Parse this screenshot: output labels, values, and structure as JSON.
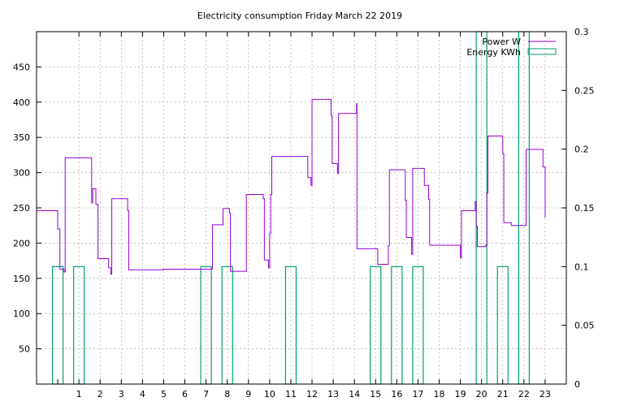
{
  "chart_data": {
    "type": "line+bar",
    "title": "Electricity consumption Friday March 22 2019",
    "colors": {
      "power": "#9400d3",
      "energy": "#009e73",
      "grid": "#a0a0a0",
      "axis": "#000000"
    },
    "grid": true,
    "legend_position": "top-right",
    "x_axis": {
      "range": [
        -1,
        24
      ],
      "ticks": [
        1,
        2,
        3,
        4,
        5,
        6,
        7,
        8,
        9,
        10,
        11,
        12,
        13,
        14,
        15,
        16,
        17,
        18,
        19,
        20,
        21,
        22,
        23
      ],
      "tick_labels": [
        "1",
        "2",
        "3",
        "4",
        "5",
        "6",
        "7",
        "8",
        "9",
        "10",
        "11",
        "12",
        "13",
        "14",
        "15",
        "16",
        "17",
        "18",
        "19",
        "20",
        "21",
        "22",
        "23"
      ]
    },
    "y_axis_left": {
      "range": [
        0,
        500
      ],
      "ticks": [
        50,
        100,
        150,
        200,
        250,
        300,
        350,
        400,
        450
      ],
      "tick_labels": [
        "50",
        "100",
        "150",
        "200",
        "250",
        "300",
        "350",
        "400",
        "450"
      ]
    },
    "y_axis_right": {
      "range": [
        0,
        0.3
      ],
      "ticks": [
        0,
        0.05,
        0.1,
        0.15,
        0.2,
        0.25,
        0.3
      ],
      "tick_labels": [
        "0",
        "0.05",
        "0.1",
        "0.15",
        "0.2",
        "0.25",
        "0.3"
      ]
    },
    "series": [
      {
        "name": "Power W",
        "kind": "step",
        "axis": "left",
        "points": [
          [
            -1,
            246
          ],
          [
            0,
            246
          ],
          [
            0,
            220
          ],
          [
            0.1,
            220
          ],
          [
            0.1,
            163
          ],
          [
            0.3,
            163
          ],
          [
            0.3,
            159
          ],
          [
            0.35,
            159
          ],
          [
            0.35,
            321
          ],
          [
            1.6,
            321
          ],
          [
            1.6,
            257
          ],
          [
            1.65,
            257
          ],
          [
            1.65,
            277
          ],
          [
            1.8,
            277
          ],
          [
            1.8,
            255
          ],
          [
            1.9,
            255
          ],
          [
            1.9,
            178
          ],
          [
            2.4,
            178
          ],
          [
            2.4,
            165
          ],
          [
            2.5,
            165
          ],
          [
            2.5,
            156
          ],
          [
            2.55,
            156
          ],
          [
            2.55,
            263
          ],
          [
            3.3,
            263
          ],
          [
            3.3,
            246
          ],
          [
            3.35,
            246
          ],
          [
            3.35,
            162
          ],
          [
            5,
            162
          ],
          [
            5,
            163
          ],
          [
            7.3,
            163
          ],
          [
            7.3,
            226
          ],
          [
            7.8,
            226
          ],
          [
            7.8,
            249
          ],
          [
            8.1,
            249
          ],
          [
            8.1,
            243
          ],
          [
            8.15,
            243
          ],
          [
            8.15,
            160
          ],
          [
            8.9,
            160
          ],
          [
            8.9,
            269
          ],
          [
            9.7,
            269
          ],
          [
            9.7,
            263
          ],
          [
            9.75,
            263
          ],
          [
            9.75,
            176
          ],
          [
            9.95,
            176
          ],
          [
            9.95,
            165
          ],
          [
            10,
            165
          ],
          [
            10,
            214
          ],
          [
            10.05,
            214
          ],
          [
            10.05,
            269
          ],
          [
            10.1,
            269
          ],
          [
            10.1,
            323
          ],
          [
            11.8,
            323
          ],
          [
            11.8,
            293
          ],
          [
            11.95,
            293
          ],
          [
            11.95,
            282
          ],
          [
            12,
            282
          ],
          [
            12,
            404
          ],
          [
            12.9,
            404
          ],
          [
            12.9,
            381
          ],
          [
            12.95,
            381
          ],
          [
            12.95,
            313
          ],
          [
            13.2,
            313
          ],
          [
            13.2,
            299
          ],
          [
            13.25,
            299
          ],
          [
            13.25,
            384
          ],
          [
            14.1,
            384
          ],
          [
            14.1,
            398
          ],
          [
            14.12,
            398
          ],
          [
            14.12,
            192
          ],
          [
            15.1,
            192
          ],
          [
            15.1,
            170
          ],
          [
            15.6,
            170
          ],
          [
            15.6,
            196
          ],
          [
            15.65,
            196
          ],
          [
            15.65,
            304
          ],
          [
            16.4,
            304
          ],
          [
            16.4,
            261
          ],
          [
            16.45,
            261
          ],
          [
            16.45,
            208
          ],
          [
            16.7,
            208
          ],
          [
            16.7,
            184
          ],
          [
            16.75,
            184
          ],
          [
            16.75,
            306
          ],
          [
            17.3,
            306
          ],
          [
            17.3,
            282
          ],
          [
            17.5,
            282
          ],
          [
            17.5,
            262
          ],
          [
            17.55,
            262
          ],
          [
            17.55,
            197
          ],
          [
            19,
            197
          ],
          [
            19,
            179
          ],
          [
            19.05,
            179
          ],
          [
            19.05,
            246
          ],
          [
            19.7,
            246
          ],
          [
            19.7,
            259
          ],
          [
            19.75,
            259
          ],
          [
            19.75,
            224
          ],
          [
            19.8,
            224
          ],
          [
            19.8,
            195
          ],
          [
            20.2,
            195
          ],
          [
            20.2,
            197
          ],
          [
            20.25,
            197
          ],
          [
            20.25,
            271
          ],
          [
            20.3,
            271
          ],
          [
            20.3,
            352
          ],
          [
            21,
            352
          ],
          [
            21,
            327
          ],
          [
            21.05,
            327
          ],
          [
            21.05,
            229
          ],
          [
            21.4,
            229
          ],
          [
            21.4,
            225
          ],
          [
            22.1,
            225
          ],
          [
            22.1,
            333
          ],
          [
            22.9,
            333
          ],
          [
            22.9,
            308
          ],
          [
            23,
            308
          ],
          [
            23,
            236
          ]
        ]
      },
      {
        "name": "Energy KWh",
        "kind": "boxes",
        "axis": "right",
        "bars": [
          {
            "x0": -0.25,
            "x1": 0.25,
            "value": 0.1
          },
          {
            "x0": 0.75,
            "x1": 1.25,
            "value": 0.1
          },
          {
            "x0": 6.75,
            "x1": 7.25,
            "value": 0.1
          },
          {
            "x0": 7.75,
            "x1": 8.25,
            "value": 0.1
          },
          {
            "x0": 10.75,
            "x1": 11.25,
            "value": 0.1
          },
          {
            "x0": 14.75,
            "x1": 15.25,
            "value": 0.1
          },
          {
            "x0": 15.75,
            "x1": 16.25,
            "value": 0.1
          },
          {
            "x0": 16.75,
            "x1": 17.25,
            "value": 0.1
          },
          {
            "x0": 19.75,
            "x1": 20.25,
            "value": 0.3
          },
          {
            "x0": 20.75,
            "x1": 21.25,
            "value": 0.1
          },
          {
            "x0": 21.75,
            "x1": 22.25,
            "value": 0.3
          }
        ]
      }
    ]
  }
}
